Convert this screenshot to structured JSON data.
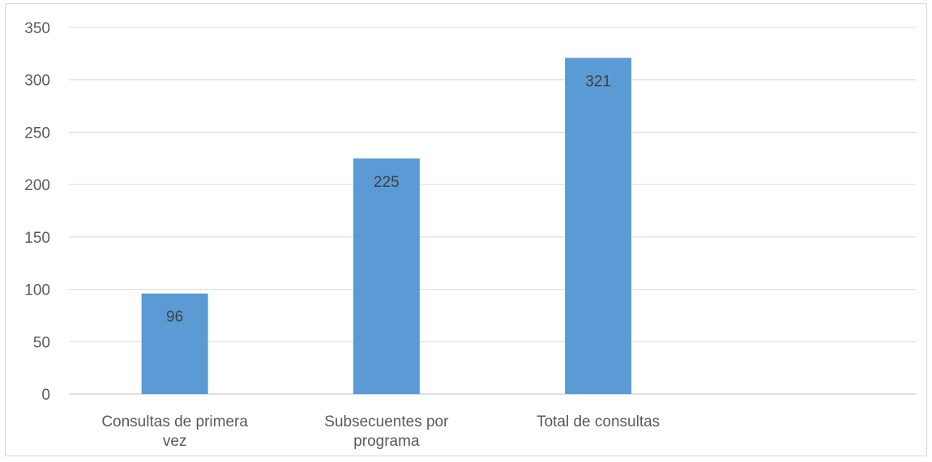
{
  "chart_data": {
    "type": "bar",
    "title": "",
    "xlabel": "",
    "ylabel": "",
    "categories": [
      [
        "Consultas de primera",
        "vez"
      ],
      [
        "Subsecuentes por",
        "programa"
      ],
      [
        "Total de consultas"
      ]
    ],
    "values": [
      96,
      225,
      321
    ],
    "data_labels": [
      "96",
      "225",
      "321"
    ],
    "ylim": [
      0,
      350
    ],
    "yticks": [
      0,
      50,
      100,
      150,
      200,
      250,
      300,
      350
    ],
    "ytick_labels": [
      "0",
      "50",
      "100",
      "150",
      "200",
      "250",
      "300",
      "350"
    ],
    "grid": true,
    "legend": "none",
    "colors": {
      "bar": "#5b9bd5",
      "grid": "#d9d9d9",
      "axis": "#bfbfbf",
      "tick_text": "#595959",
      "data_label_text": "#404040"
    }
  }
}
